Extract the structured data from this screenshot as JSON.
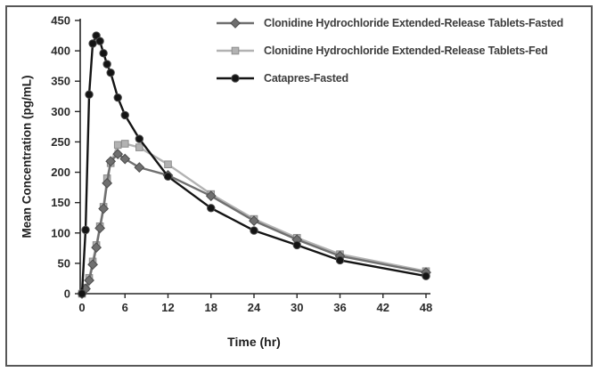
{
  "figure": {
    "border_color": "#575757",
    "background": "#ffffff"
  },
  "chart_data": {
    "type": "line",
    "title": "",
    "xlabel": "Time (hr)",
    "ylabel": "Mean Concentration (pg/mL)",
    "xlim": [
      0,
      48
    ],
    "ylim": [
      0,
      450
    ],
    "grid": false,
    "legend_position": "top-right",
    "x_ticks": [
      0,
      6,
      12,
      18,
      24,
      30,
      36,
      42,
      48
    ],
    "y_ticks": [
      0,
      50,
      100,
      150,
      200,
      250,
      300,
      350,
      400,
      450
    ],
    "x": [
      0,
      0.5,
      1,
      1.5,
      2,
      2.5,
      3,
      3.5,
      4,
      5,
      6,
      8,
      12,
      18,
      24,
      30,
      36,
      48
    ],
    "series": [
      {
        "name": "Clonidine Hydrochloride Extended-Release Tablets-Fasted",
        "marker": "diamond",
        "color": "#6f6f6f",
        "marker_stroke": "#4c4c4c",
        "values": [
          0,
          8,
          22,
          48,
          76,
          108,
          140,
          182,
          218,
          230,
          222,
          208,
          195,
          161,
          120,
          89,
          62,
          35
        ]
      },
      {
        "name": "Clonidine Hydrochloride Extended-Release Tablets-Fed",
        "marker": "square",
        "color": "#b2b2b2",
        "marker_stroke": "#8c8c8c",
        "values": [
          0,
          10,
          26,
          53,
          80,
          111,
          143,
          190,
          215,
          245,
          247,
          241,
          213,
          164,
          123,
          92,
          65,
          37
        ]
      },
      {
        "name": "Catapres-Fasted",
        "marker": "circle",
        "color": "#141414",
        "marker_stroke": "#4c4c4c",
        "values": [
          0,
          105,
          328,
          412,
          425,
          416,
          396,
          378,
          364,
          323,
          294,
          255,
          193,
          141,
          104,
          80,
          55,
          29
        ]
      }
    ]
  }
}
